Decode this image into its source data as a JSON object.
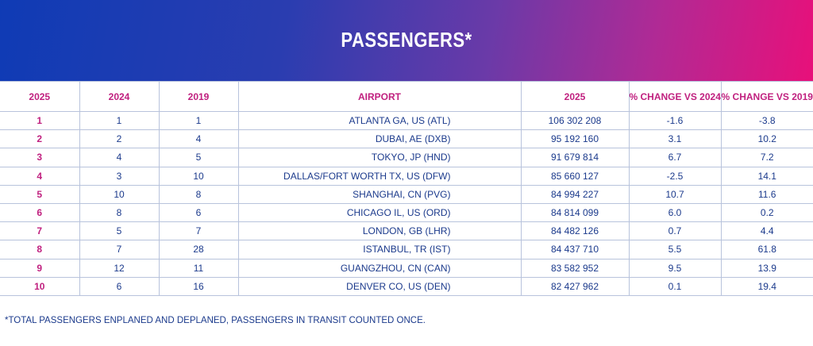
{
  "title": "PASSENGERS*",
  "headers": [
    "2025",
    "2024",
    "2019",
    "AIRPORT",
    "2025",
    "% CHANGE VS 2024",
    "% CHANGE VS 2019"
  ],
  "rows": [
    [
      "1",
      "1",
      "1",
      "ATLANTA GA, US (ATL)",
      "106 302 208",
      "-1.6",
      "-3.8"
    ],
    [
      "2",
      "2",
      "4",
      "DUBAI, AE (DXB)",
      "95 192 160",
      "3.1",
      "10.2"
    ],
    [
      "3",
      "4",
      "5",
      "TOKYO, JP (HND)",
      "91 679 814",
      "6.7",
      "7.2"
    ],
    [
      "4",
      "3",
      "10",
      "DALLAS/FORT WORTH TX, US (DFW)",
      "85 660 127",
      "-2.5",
      "14.1"
    ],
    [
      "5",
      "10",
      "8",
      "SHANGHAI, CN (PVG)",
      "84 994 227",
      "10.7",
      "11.6"
    ],
    [
      "6",
      "8",
      "6",
      "CHICAGO IL, US (ORD)",
      "84 814 099",
      "6.0",
      "0.2"
    ],
    [
      "7",
      "5",
      "7",
      "LONDON, GB (LHR)",
      "84 482 126",
      "0.7",
      "4.4"
    ],
    [
      "8",
      "7",
      "28",
      "ISTANBUL, TR (IST)",
      "84 437 710",
      "5.5",
      "61.8"
    ],
    [
      "9",
      "12",
      "11",
      "GUANGZHOU, CN (CAN)",
      "83 582 952",
      "9.5",
      "13.9"
    ],
    [
      "10",
      "6",
      "16",
      "DENVER CO, US (DEN)",
      "82 427 962",
      "0.1",
      "19.4"
    ]
  ],
  "footnote": "*TOTAL PASSENGERS ENPLANED AND DEPLANED, PASSENGERS IN TRANSIT COUNTED ONCE.",
  "colors": {
    "accent": "#c0207f",
    "text": "#1b3a8c",
    "gradient_start": "#0f3bb5",
    "gradient_end": "#e8107a"
  }
}
